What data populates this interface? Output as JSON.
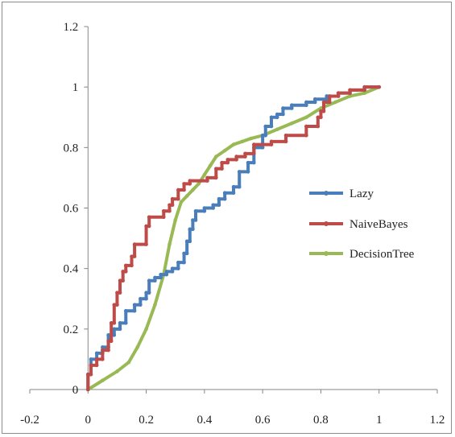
{
  "chart_data": {
    "type": "line",
    "title": "",
    "xlabel": "",
    "ylabel": "",
    "xlim": [
      -0.2,
      1.2
    ],
    "ylim": [
      0,
      1.2
    ],
    "x_ticks": [
      -0.2,
      0,
      0.2,
      0.4,
      0.6,
      0.8,
      1,
      1.2
    ],
    "x_tick_labels": [
      "-0.2",
      "0",
      "0.2",
      "0.4",
      "0.6",
      "0.8",
      "1",
      "1.2"
    ],
    "y_ticks": [
      0,
      0.2,
      0.4,
      0.6,
      0.8,
      1,
      1.2
    ],
    "y_tick_labels": [
      "0",
      "0.2",
      "0.4",
      "0.6",
      "0.8",
      "1",
      "1.2"
    ],
    "grid": false,
    "legend_position": "right",
    "series": [
      {
        "name": "Lazy",
        "color": "#4a7ebb",
        "points": [
          [
            0,
            0
          ],
          [
            0,
            0.05
          ],
          [
            0.01,
            0.05
          ],
          [
            0.01,
            0.1
          ],
          [
            0.03,
            0.1
          ],
          [
            0.03,
            0.12
          ],
          [
            0.05,
            0.12
          ],
          [
            0.05,
            0.14
          ],
          [
            0.07,
            0.14
          ],
          [
            0.07,
            0.18
          ],
          [
            0.09,
            0.18
          ],
          [
            0.09,
            0.2
          ],
          [
            0.11,
            0.2
          ],
          [
            0.11,
            0.22
          ],
          [
            0.13,
            0.22
          ],
          [
            0.13,
            0.26
          ],
          [
            0.16,
            0.26
          ],
          [
            0.16,
            0.28
          ],
          [
            0.18,
            0.28
          ],
          [
            0.18,
            0.3
          ],
          [
            0.2,
            0.3
          ],
          [
            0.2,
            0.32
          ],
          [
            0.21,
            0.32
          ],
          [
            0.21,
            0.36
          ],
          [
            0.23,
            0.36
          ],
          [
            0.23,
            0.37
          ],
          [
            0.25,
            0.37
          ],
          [
            0.25,
            0.38
          ],
          [
            0.27,
            0.38
          ],
          [
            0.27,
            0.39
          ],
          [
            0.29,
            0.39
          ],
          [
            0.29,
            0.4
          ],
          [
            0.31,
            0.4
          ],
          [
            0.31,
            0.42
          ],
          [
            0.33,
            0.42
          ],
          [
            0.33,
            0.45
          ],
          [
            0.34,
            0.45
          ],
          [
            0.34,
            0.49
          ],
          [
            0.35,
            0.49
          ],
          [
            0.35,
            0.53
          ],
          [
            0.36,
            0.53
          ],
          [
            0.36,
            0.56
          ],
          [
            0.37,
            0.56
          ],
          [
            0.37,
            0.59
          ],
          [
            0.4,
            0.59
          ],
          [
            0.4,
            0.6
          ],
          [
            0.43,
            0.6
          ],
          [
            0.43,
            0.61
          ],
          [
            0.45,
            0.61
          ],
          [
            0.45,
            0.63
          ],
          [
            0.47,
            0.63
          ],
          [
            0.47,
            0.65
          ],
          [
            0.5,
            0.65
          ],
          [
            0.5,
            0.67
          ],
          [
            0.52,
            0.67
          ],
          [
            0.52,
            0.72
          ],
          [
            0.55,
            0.72
          ],
          [
            0.55,
            0.75
          ],
          [
            0.57,
            0.75
          ],
          [
            0.57,
            0.8
          ],
          [
            0.6,
            0.8
          ],
          [
            0.6,
            0.84
          ],
          [
            0.61,
            0.84
          ],
          [
            0.61,
            0.87
          ],
          [
            0.63,
            0.87
          ],
          [
            0.63,
            0.9
          ],
          [
            0.65,
            0.9
          ],
          [
            0.65,
            0.91
          ],
          [
            0.67,
            0.91
          ],
          [
            0.67,
            0.93
          ],
          [
            0.7,
            0.93
          ],
          [
            0.7,
            0.94
          ],
          [
            0.75,
            0.94
          ],
          [
            0.75,
            0.95
          ],
          [
            0.78,
            0.95
          ],
          [
            0.78,
            0.96
          ],
          [
            0.82,
            0.96
          ],
          [
            0.82,
            0.97
          ],
          [
            0.86,
            0.97
          ],
          [
            0.86,
            0.98
          ],
          [
            0.9,
            0.98
          ],
          [
            0.9,
            0.99
          ],
          [
            0.95,
            0.99
          ],
          [
            0.95,
            1
          ],
          [
            1,
            1
          ]
        ]
      },
      {
        "name": "NaiveBayes",
        "color": "#be4b48",
        "points": [
          [
            0,
            0
          ],
          [
            0,
            0.05
          ],
          [
            0.01,
            0.05
          ],
          [
            0.01,
            0.08
          ],
          [
            0.03,
            0.08
          ],
          [
            0.03,
            0.1
          ],
          [
            0.05,
            0.1
          ],
          [
            0.05,
            0.13
          ],
          [
            0.07,
            0.13
          ],
          [
            0.07,
            0.16
          ],
          [
            0.08,
            0.16
          ],
          [
            0.08,
            0.22
          ],
          [
            0.09,
            0.22
          ],
          [
            0.09,
            0.28
          ],
          [
            0.1,
            0.28
          ],
          [
            0.1,
            0.32
          ],
          [
            0.11,
            0.32
          ],
          [
            0.11,
            0.36
          ],
          [
            0.12,
            0.36
          ],
          [
            0.12,
            0.39
          ],
          [
            0.13,
            0.39
          ],
          [
            0.13,
            0.41
          ],
          [
            0.15,
            0.41
          ],
          [
            0.15,
            0.44
          ],
          [
            0.16,
            0.44
          ],
          [
            0.16,
            0.48
          ],
          [
            0.2,
            0.48
          ],
          [
            0.2,
            0.54
          ],
          [
            0.21,
            0.54
          ],
          [
            0.21,
            0.57
          ],
          [
            0.26,
            0.57
          ],
          [
            0.26,
            0.59
          ],
          [
            0.28,
            0.59
          ],
          [
            0.28,
            0.61
          ],
          [
            0.29,
            0.61
          ],
          [
            0.29,
            0.63
          ],
          [
            0.31,
            0.63
          ],
          [
            0.31,
            0.66
          ],
          [
            0.33,
            0.66
          ],
          [
            0.33,
            0.68
          ],
          [
            0.35,
            0.68
          ],
          [
            0.35,
            0.69
          ],
          [
            0.41,
            0.69
          ],
          [
            0.41,
            0.7
          ],
          [
            0.44,
            0.7
          ],
          [
            0.44,
            0.73
          ],
          [
            0.46,
            0.73
          ],
          [
            0.46,
            0.75
          ],
          [
            0.48,
            0.75
          ],
          [
            0.48,
            0.76
          ],
          [
            0.51,
            0.76
          ],
          [
            0.51,
            0.77
          ],
          [
            0.54,
            0.77
          ],
          [
            0.54,
            0.78
          ],
          [
            0.57,
            0.78
          ],
          [
            0.57,
            0.81
          ],
          [
            0.63,
            0.81
          ],
          [
            0.63,
            0.82
          ],
          [
            0.68,
            0.82
          ],
          [
            0.68,
            0.84
          ],
          [
            0.75,
            0.84
          ],
          [
            0.75,
            0.87
          ],
          [
            0.79,
            0.87
          ],
          [
            0.79,
            0.9
          ],
          [
            0.8,
            0.9
          ],
          [
            0.8,
            0.92
          ],
          [
            0.81,
            0.92
          ],
          [
            0.81,
            0.95
          ],
          [
            0.83,
            0.95
          ],
          [
            0.83,
            0.97
          ],
          [
            0.86,
            0.97
          ],
          [
            0.86,
            0.98
          ],
          [
            0.9,
            0.98
          ],
          [
            0.9,
            0.99
          ],
          [
            0.95,
            0.99
          ],
          [
            0.95,
            1
          ],
          [
            1,
            1
          ]
        ]
      },
      {
        "name": "DecisionTree",
        "color": "#98b954",
        "points": [
          [
            0,
            0
          ],
          [
            0.05,
            0.03
          ],
          [
            0.1,
            0.06
          ],
          [
            0.14,
            0.09
          ],
          [
            0.17,
            0.14
          ],
          [
            0.2,
            0.2
          ],
          [
            0.23,
            0.28
          ],
          [
            0.26,
            0.38
          ],
          [
            0.28,
            0.48
          ],
          [
            0.3,
            0.56
          ],
          [
            0.32,
            0.62
          ],
          [
            0.34,
            0.64
          ],
          [
            0.36,
            0.66
          ],
          [
            0.38,
            0.68
          ],
          [
            0.4,
            0.71
          ],
          [
            0.42,
            0.74
          ],
          [
            0.44,
            0.77
          ],
          [
            0.47,
            0.79
          ],
          [
            0.5,
            0.81
          ],
          [
            0.53,
            0.82
          ],
          [
            0.56,
            0.83
          ],
          [
            0.6,
            0.84
          ],
          [
            0.65,
            0.86
          ],
          [
            0.7,
            0.88
          ],
          [
            0.75,
            0.9
          ],
          [
            0.8,
            0.93
          ],
          [
            0.85,
            0.95
          ],
          [
            0.9,
            0.97
          ],
          [
            0.95,
            0.98
          ],
          [
            1,
            1
          ]
        ]
      }
    ]
  }
}
